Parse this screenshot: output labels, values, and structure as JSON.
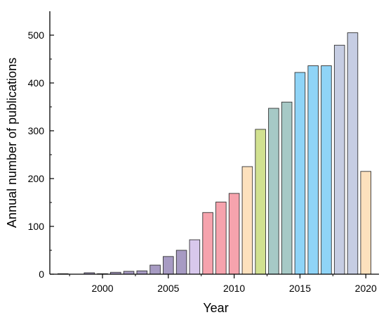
{
  "chart_data": {
    "type": "bar",
    "title": "",
    "xlabel": "Year",
    "ylabel": "Annual number of publications",
    "categories": [
      "1997",
      "1998",
      "1999",
      "2000",
      "2001",
      "2002",
      "2003",
      "2004",
      "2005",
      "2006",
      "2007",
      "2008",
      "2009",
      "2010",
      "2011",
      "2012",
      "2013",
      "2014",
      "2015",
      "2016",
      "2017",
      "2018",
      "2019",
      "2020"
    ],
    "values": [
      1,
      0,
      3,
      1,
      4,
      6,
      7,
      19,
      37,
      50,
      72,
      129,
      151,
      169,
      225,
      303,
      347,
      360,
      422,
      436,
      436,
      479,
      505,
      215
    ],
    "colors": [
      "#a79bc3",
      "#a79bc3",
      "#a79bc3",
      "#a79bc3",
      "#a79bc3",
      "#a79bc3",
      "#a79bc3",
      "#a79bc3",
      "#a79bc3",
      "#a79bc3",
      "#d8c8ec",
      "#f6a3ad",
      "#f6a3ad",
      "#f6a3ad",
      "#fde1bd",
      "#d1e190",
      "#a6c9c6",
      "#a6c9c6",
      "#8fd4f7",
      "#8fd4f7",
      "#8fd4f7",
      "#c6cde3",
      "#c6cde3",
      "#fde1bd"
    ],
    "xlim": [
      1996,
      2021
    ],
    "ylim": [
      0,
      550
    ],
    "x_ticks": [
      2000,
      2005,
      2010,
      2015,
      2020
    ],
    "y_ticks": [
      0,
      100,
      200,
      300,
      400,
      500
    ],
    "grid": false,
    "legend": "none"
  }
}
